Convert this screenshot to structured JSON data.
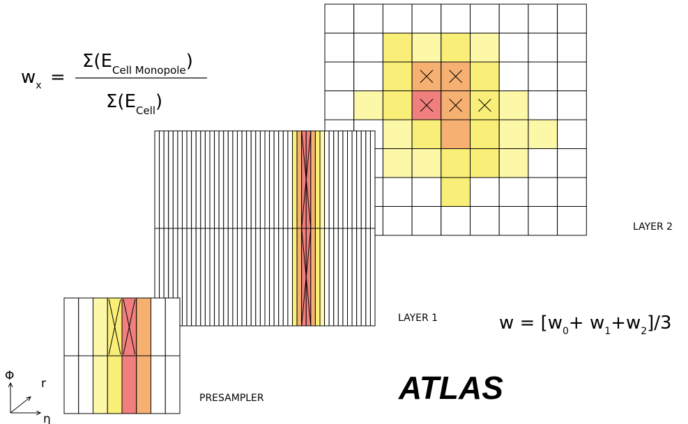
{
  "colors": {
    "grid": "#000000",
    "pale_yellow": "#fdf7a8",
    "yellow": "#f9ee77",
    "orange": "#f6b071",
    "red": "#f07f7d"
  },
  "formula_weight": {
    "lhs_base": "w",
    "lhs_sub": "x",
    "eq": "=",
    "num_prefix": "Σ(E",
    "num_sub": "Cell Monopole",
    "num_suffix": ")",
    "den_prefix": "Σ(E",
    "den_sub": "Cell",
    "den_suffix": ")"
  },
  "formula_avg": {
    "t1": "w = [w",
    "s1": "0",
    "t2": "+ w",
    "s2": "1",
    "t3": "+w",
    "s3": "2",
    "t4": "]/3"
  },
  "labels": {
    "layer2": "LAYER 2",
    "layer1": "LAYER 1",
    "presampler": "PRESAMPLER",
    "atlas": "ATLAS"
  },
  "axes": {
    "phi": "Φ",
    "r": "r",
    "eta": "η"
  },
  "layer2_cells": {
    "cols": 9,
    "rows": 8,
    "fills": [
      "000000000",
      "002121000",
      "002332000",
      "012432100",
      "001232110",
      "001122100",
      "000020000",
      "000000000"
    ],
    "marked": [
      [
        2,
        3
      ],
      [
        2,
        4
      ],
      [
        3,
        3
      ],
      [
        3,
        4
      ],
      [
        3,
        5
      ]
    ]
  },
  "layer1_cells": {
    "strips": 48,
    "rows": 2,
    "highlight": [
      {
        "index": 30,
        "level": "yellow"
      },
      {
        "index": 31,
        "level": "orange"
      },
      {
        "index": 32,
        "level": "red"
      },
      {
        "index": 33,
        "level": "red"
      },
      {
        "index": 34,
        "level": "orange"
      },
      {
        "index": 35,
        "level": "yellow"
      },
      {
        "index": 36,
        "level": "pale_yellow"
      }
    ],
    "marked": [
      [
        0,
        32
      ],
      [
        1,
        32
      ]
    ]
  },
  "presampler_cells": {
    "cols": 8,
    "rows": 2,
    "fills": [
      "00124300",
      "00124300"
    ],
    "marked": [
      [
        0,
        3
      ],
      [
        0,
        4
      ]
    ]
  }
}
